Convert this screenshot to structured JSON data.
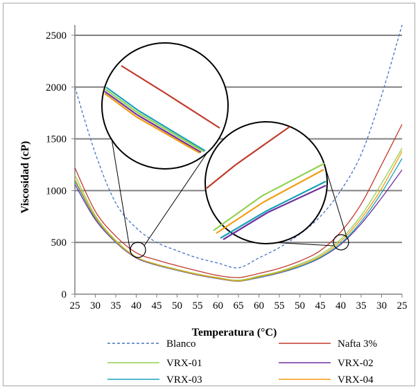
{
  "chart_data": {
    "type": "line",
    "xlabel": "Temperatura (°C)",
    "ylabel": "Viscosidad  (cP)",
    "ylim": [
      0,
      2600
    ],
    "yticks": [
      0,
      500,
      1000,
      1500,
      2000,
      2500
    ],
    "grid": "horizontal",
    "legend_position": "bottom",
    "categories": [
      "25",
      "30",
      "35",
      "40",
      "45",
      "50",
      "55",
      "60",
      "65",
      "60",
      "55",
      "50",
      "45",
      "40",
      "35",
      "30",
      "25"
    ],
    "series": [
      {
        "name": "Blanco",
        "color": "#4472C4",
        "dashed": true,
        "values": [
          2000,
          1360,
          880,
          640,
          500,
          420,
          350,
          300,
          255,
          350,
          450,
          580,
          750,
          1000,
          1350,
          1920,
          2600
        ]
      },
      {
        "name": "Nafta 3%",
        "color": "#C0392B",
        "dashed": false,
        "values": [
          1220,
          800,
          560,
          400,
          330,
          275,
          225,
          180,
          160,
          200,
          250,
          320,
          420,
          600,
          870,
          1250,
          1640
        ]
      },
      {
        "name": "VRX-01",
        "color": "#92D050",
        "dashed": false,
        "values": [
          1150,
          760,
          520,
          360,
          290,
          240,
          195,
          160,
          135,
          175,
          220,
          290,
          380,
          530,
          760,
          1070,
          1410
        ]
      },
      {
        "name": "VRX-02",
        "color": "#7030A0",
        "dashed": false,
        "values": [
          1060,
          720,
          500,
          350,
          280,
          230,
          185,
          150,
          125,
          160,
          205,
          265,
          350,
          480,
          680,
          930,
          1200
        ]
      },
      {
        "name": "VRX-03",
        "color": "#17A2B8",
        "dashed": false,
        "values": [
          1090,
          735,
          505,
          355,
          283,
          232,
          188,
          153,
          126,
          163,
          208,
          268,
          355,
          490,
          700,
          980,
          1310
        ]
      },
      {
        "name": "VRX-04",
        "color": "#F39C12",
        "dashed": false,
        "values": [
          1110,
          745,
          510,
          357,
          286,
          235,
          190,
          155,
          128,
          168,
          213,
          278,
          365,
          510,
          730,
          1020,
          1380
        ]
      }
    ]
  }
}
